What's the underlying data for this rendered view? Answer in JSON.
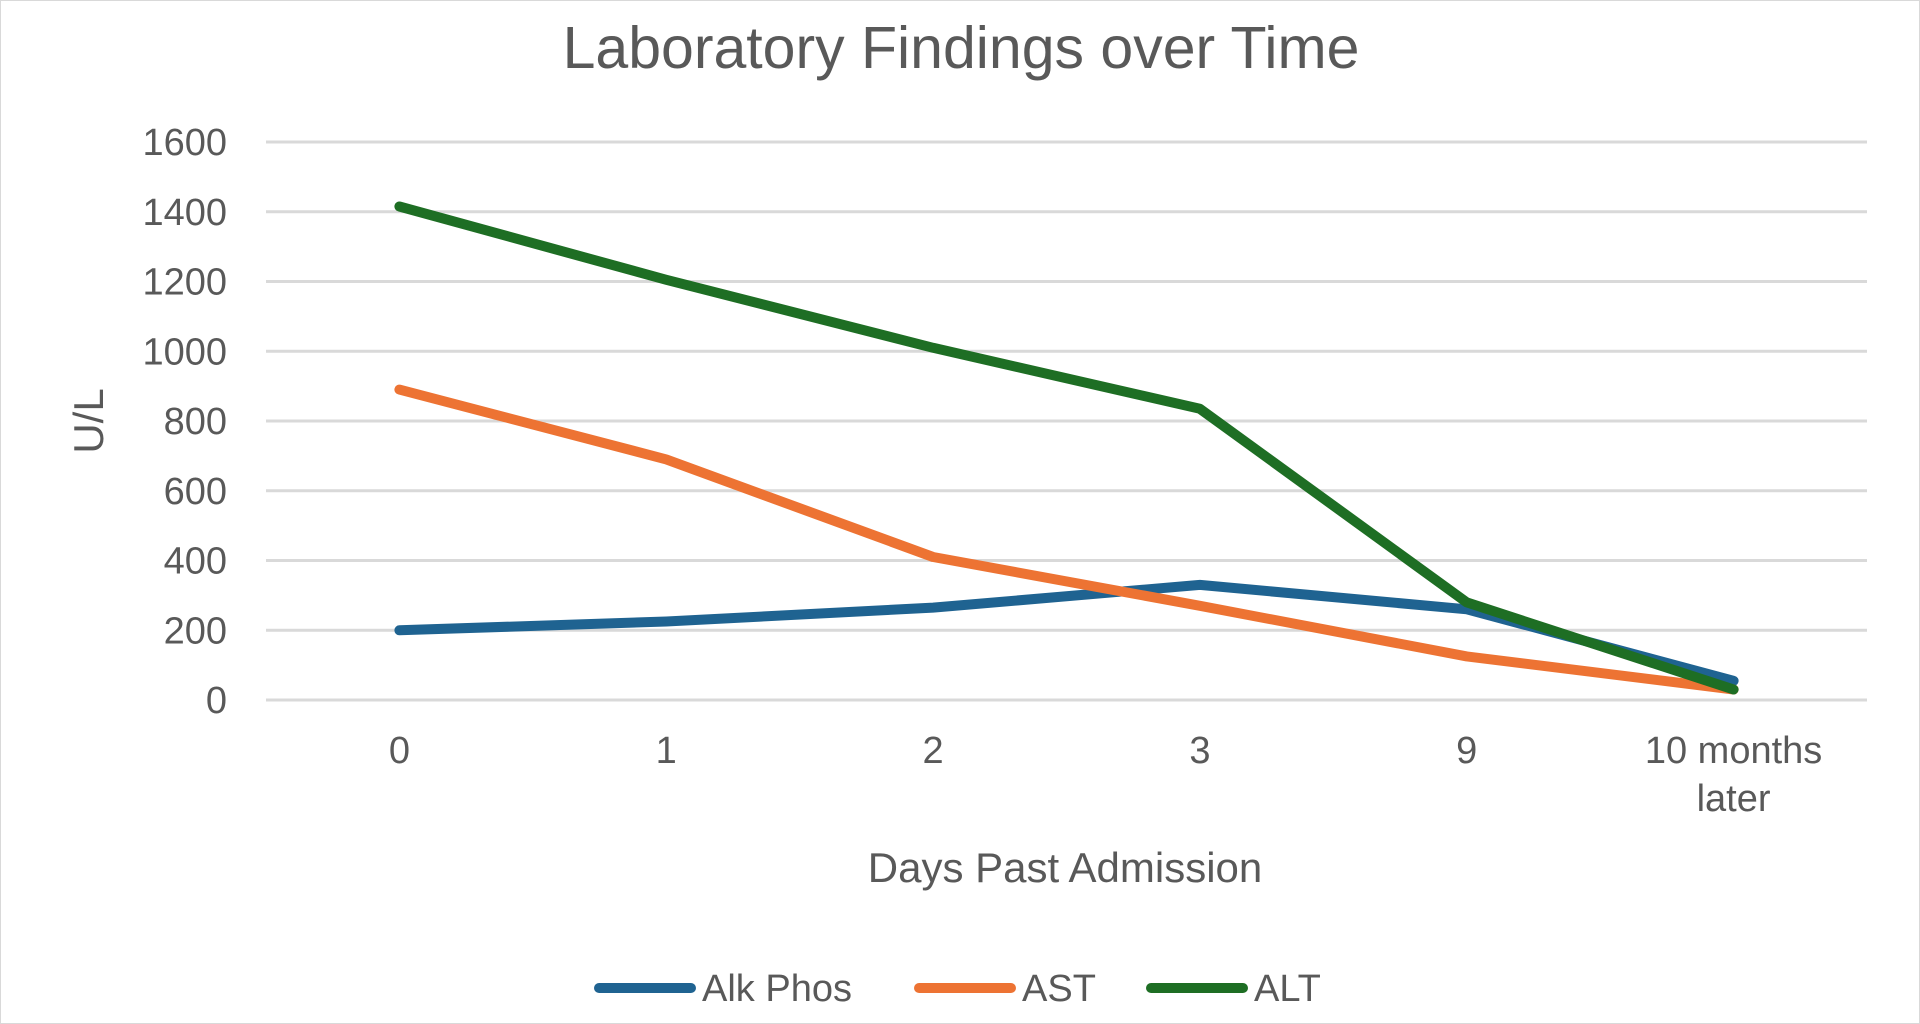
{
  "chart_data": {
    "type": "line",
    "title": "Laboratory Findings over Time",
    "xlabel": "Days Past Admission",
    "ylabel": "U/L",
    "categories": [
      "0",
      "1",
      "2",
      "3",
      "9",
      "10 months later"
    ],
    "category_lines": [
      [
        "0"
      ],
      [
        "1"
      ],
      [
        "2"
      ],
      [
        "3"
      ],
      [
        "9"
      ],
      [
        "10 months",
        "later"
      ]
    ],
    "ylim": [
      0,
      1600
    ],
    "yticks": [
      0,
      200,
      400,
      600,
      800,
      1000,
      1200,
      1400,
      1600
    ],
    "grid": true,
    "legend_position": "bottom",
    "series": [
      {
        "name": "Alk Phos",
        "color": "#1f6391",
        "values": [
          200,
          225,
          265,
          330,
          260,
          55
        ]
      },
      {
        "name": "AST",
        "color": "#ed7333",
        "values": [
          890,
          690,
          410,
          270,
          125,
          30
        ]
      },
      {
        "name": "ALT",
        "color": "#1e6e24",
        "values": [
          1415,
          1205,
          1010,
          835,
          280,
          30
        ]
      }
    ]
  }
}
